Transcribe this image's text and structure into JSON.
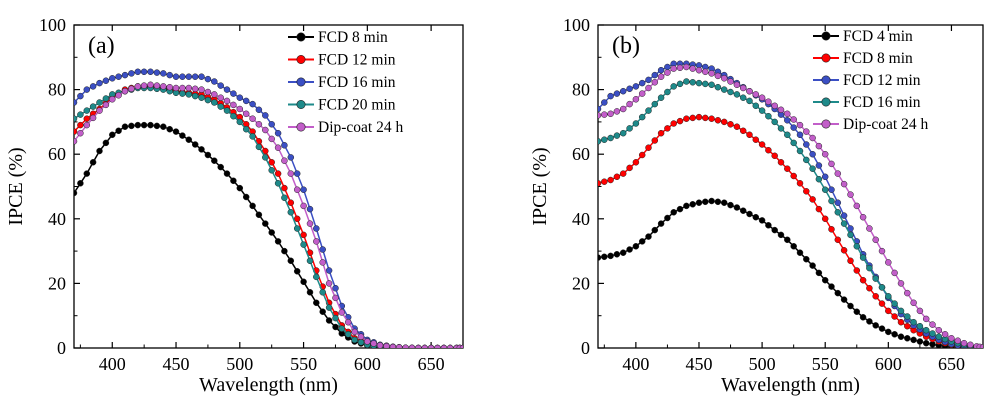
{
  "chart_data": [
    {
      "type": "line",
      "panel_label": "(a)",
      "xlabel": "Wavelength (nm)",
      "ylabel": "IPCE (%)",
      "xlim": [
        370,
        675
      ],
      "ylim": [
        0,
        100
      ],
      "x_ticks": [
        400,
        450,
        500,
        550,
        600,
        650
      ],
      "y_ticks": [
        0,
        20,
        40,
        60,
        80,
        100
      ],
      "legend_position": "top-right",
      "series": [
        {
          "name": "FCD 8 min",
          "color": "#000000",
          "x": [
            370,
            380,
            390,
            400,
            410,
            420,
            430,
            440,
            450,
            460,
            470,
            480,
            490,
            500,
            510,
            520,
            530,
            540,
            550,
            560,
            570,
            580,
            590,
            600,
            610,
            620,
            630,
            640,
            650,
            660,
            670,
            675
          ],
          "y": [
            48,
            54,
            61,
            66,
            68.5,
            69,
            69,
            68.5,
            67,
            64.5,
            61.5,
            58,
            54,
            49.5,
            44,
            38.5,
            33,
            27,
            20.5,
            14,
            8.5,
            4.5,
            2,
            0.8,
            0.3,
            0.1,
            0,
            0,
            0,
            0,
            0,
            0
          ]
        },
        {
          "name": "FCD 12 min",
          "color": "#ff0000",
          "x": [
            370,
            380,
            390,
            400,
            410,
            420,
            430,
            440,
            450,
            460,
            470,
            480,
            490,
            500,
            510,
            520,
            530,
            540,
            550,
            560,
            570,
            580,
            590,
            600,
            610,
            620,
            630,
            640,
            650,
            660,
            670,
            675
          ],
          "y": [
            67,
            71,
            74,
            77.5,
            80,
            81,
            81,
            80.5,
            79.5,
            79,
            78.5,
            77,
            74.5,
            71.5,
            67,
            61,
            54,
            45,
            35,
            24,
            14,
            7,
            3,
            1.2,
            0.5,
            0.2,
            0,
            0,
            0,
            0,
            0,
            0
          ]
        },
        {
          "name": "FCD 16 min",
          "color": "#3b4fc4",
          "x": [
            370,
            380,
            390,
            400,
            410,
            420,
            430,
            440,
            450,
            460,
            470,
            480,
            490,
            500,
            510,
            520,
            530,
            540,
            550,
            560,
            570,
            580,
            590,
            600,
            610,
            620,
            630,
            640,
            650,
            660,
            670,
            675
          ],
          "y": [
            76,
            80,
            82,
            83.5,
            84.5,
            85.5,
            85.5,
            85,
            84,
            84,
            84,
            82.5,
            80,
            77.5,
            75.5,
            72,
            66.5,
            59,
            49,
            37,
            24,
            13,
            6,
            2.5,
            1,
            0.4,
            0.1,
            0,
            0,
            0,
            0,
            0
          ]
        },
        {
          "name": "FCD 20 min",
          "color": "#1e8a8a",
          "x": [
            370,
            380,
            390,
            400,
            410,
            420,
            430,
            440,
            450,
            460,
            470,
            480,
            490,
            500,
            510,
            520,
            530,
            540,
            550,
            560,
            570,
            580,
            590,
            600,
            610,
            620,
            630,
            640,
            650,
            660,
            670,
            675
          ],
          "y": [
            71,
            73.5,
            76,
            78.5,
            79.5,
            80.5,
            80.5,
            80,
            79,
            78.5,
            77.5,
            76,
            73.5,
            70,
            65.5,
            59,
            51,
            42,
            32,
            22,
            12.5,
            6,
            2.5,
            1,
            0.4,
            0.1,
            0,
            0,
            0,
            0,
            0,
            0
          ]
        },
        {
          "name": "Dip-coat 24 h",
          "color": "#c25ec9",
          "x": [
            370,
            380,
            390,
            400,
            410,
            420,
            430,
            440,
            450,
            460,
            470,
            480,
            490,
            500,
            510,
            520,
            530,
            540,
            550,
            560,
            570,
            580,
            590,
            600,
            610,
            620,
            630,
            640,
            650,
            660,
            670,
            675
          ],
          "y": [
            64,
            69,
            73.5,
            77,
            79.5,
            81,
            81.5,
            81,
            80.5,
            80.5,
            80,
            78.5,
            76.5,
            74,
            71,
            67.5,
            62,
            54,
            44,
            33,
            20,
            11,
            5,
            2,
            0.8,
            0.3,
            0.1,
            0,
            0,
            0,
            0,
            0
          ]
        }
      ]
    },
    {
      "type": "line",
      "panel_label": "(b)",
      "xlabel": "Wavelength (nm)",
      "ylabel": "IPCE (%)",
      "xlim": [
        370,
        675
      ],
      "ylim": [
        0,
        100
      ],
      "x_ticks": [
        400,
        450,
        500,
        550,
        600,
        650
      ],
      "y_ticks": [
        0,
        20,
        40,
        60,
        80,
        100
      ],
      "legend_position": "top-right",
      "series": [
        {
          "name": "FCD 4 min",
          "color": "#000000",
          "x": [
            370,
            380,
            390,
            400,
            410,
            420,
            430,
            440,
            450,
            460,
            470,
            480,
            490,
            500,
            510,
            520,
            530,
            540,
            550,
            560,
            570,
            580,
            590,
            600,
            610,
            620,
            630,
            640,
            650,
            660,
            670,
            675
          ],
          "y": [
            28,
            28.5,
            29.5,
            31.5,
            34.5,
            38.5,
            42,
            44,
            45,
            45.5,
            45,
            43.5,
            41.5,
            39.5,
            36.5,
            33.5,
            29.5,
            25.5,
            21,
            17,
            13,
            9.5,
            7,
            5,
            3.5,
            2.5,
            1.5,
            0.8,
            0.3,
            0.1,
            0,
            0
          ]
        },
        {
          "name": "FCD 8 min",
          "color": "#ff0000",
          "x": [
            370,
            380,
            390,
            400,
            410,
            420,
            430,
            440,
            450,
            460,
            470,
            480,
            490,
            500,
            510,
            520,
            530,
            540,
            550,
            560,
            570,
            580,
            590,
            600,
            610,
            620,
            630,
            640,
            650,
            660,
            670,
            675
          ],
          "y": [
            51,
            52,
            54,
            57.5,
            62,
            66.5,
            69.5,
            71,
            71.5,
            71,
            70,
            68.5,
            66,
            63,
            59.5,
            55.5,
            51,
            46,
            40,
            33.5,
            27,
            21,
            16,
            11.5,
            8,
            5.5,
            3.5,
            2,
            1,
            0.4,
            0.1,
            0
          ]
        },
        {
          "name": "FCD 12 min",
          "color": "#3b4fc4",
          "x": [
            370,
            380,
            390,
            400,
            410,
            420,
            430,
            440,
            450,
            460,
            470,
            480,
            490,
            500,
            510,
            520,
            530,
            540,
            550,
            560,
            570,
            580,
            590,
            600,
            610,
            620,
            630,
            640,
            650,
            660,
            670,
            675
          ],
          "y": [
            74,
            78,
            79.5,
            81,
            83,
            86,
            88,
            88,
            87.5,
            86.5,
            84.5,
            82,
            79.5,
            77,
            74,
            70.5,
            66,
            60,
            53,
            45,
            37,
            29,
            22,
            15.5,
            10.5,
            7,
            4.5,
            2.5,
            1.2,
            0.5,
            0.1,
            0
          ]
        },
        {
          "name": "FCD 16 min",
          "color": "#1e8a8a",
          "x": [
            370,
            380,
            390,
            400,
            410,
            420,
            430,
            440,
            450,
            460,
            470,
            480,
            490,
            500,
            510,
            520,
            530,
            540,
            550,
            560,
            570,
            580,
            590,
            600,
            610,
            620,
            630,
            640,
            650,
            660,
            670,
            675
          ],
          "y": [
            64,
            65,
            66.5,
            69.5,
            73.5,
            77.5,
            81,
            82.5,
            82,
            81.5,
            80,
            78.5,
            76.5,
            73.5,
            70,
            66,
            61,
            55.5,
            49,
            42,
            35,
            28,
            21.5,
            16,
            11.5,
            8,
            5.5,
            3.5,
            2,
            1,
            0.3,
            0.1
          ]
        },
        {
          "name": "Dip-coat 24 h",
          "color": "#c25ec9",
          "x": [
            370,
            380,
            390,
            400,
            410,
            420,
            430,
            440,
            450,
            460,
            470,
            480,
            490,
            500,
            510,
            520,
            530,
            540,
            550,
            560,
            570,
            580,
            590,
            600,
            610,
            620,
            630,
            640,
            650,
            660,
            670,
            675
          ],
          "y": [
            72,
            72.5,
            74,
            77,
            80.5,
            84,
            86.5,
            87,
            86,
            85,
            83.5,
            81.5,
            79.5,
            77.5,
            75,
            72.5,
            69,
            65,
            60,
            54,
            47.5,
            40.5,
            33.5,
            26.5,
            20,
            14,
            9,
            5.5,
            3,
            1.5,
            0.5,
            0.2
          ]
        }
      ]
    }
  ]
}
